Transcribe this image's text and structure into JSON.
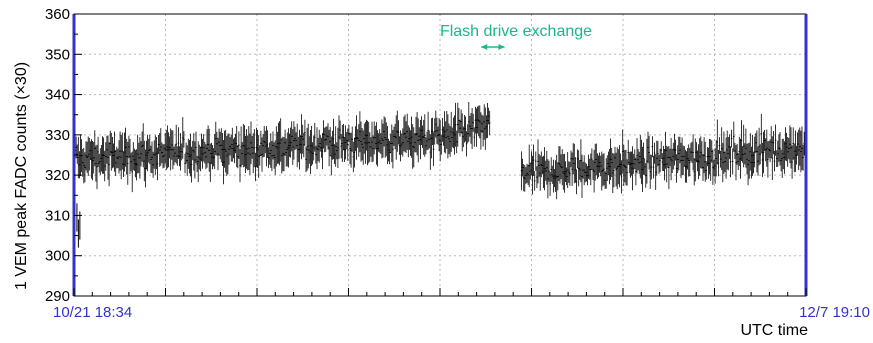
{
  "chart_data": {
    "type": "scatter",
    "title": "",
    "ylabel": "1 VEM peak FADC counts (×30)",
    "xlabel": "UTC time",
    "ylim": [
      290,
      360
    ],
    "yticks": [
      290,
      300,
      310,
      320,
      330,
      340,
      350,
      360
    ],
    "x_start_label": "10/21 18:34",
    "x_end_label": "12/7 19:10",
    "x_tick_labels_color": "#3333cc",
    "grid": "dotted",
    "annotation": {
      "text": "Flash drive exchange",
      "color": "#19b889",
      "x_range_fraction": [
        0.57,
        0.61
      ]
    },
    "series": [
      {
        "marker_color": "#000000",
        "errorbars": true,
        "segments": [
          {
            "x_range_fraction": [
              0.0,
              0.57
            ],
            "mean_start": 324,
            "mean_end": 330,
            "noise_sd": 3.5,
            "errorbar_halfwidth": 4,
            "min_value": 305,
            "max_value": 345
          },
          {
            "x_range_fraction": [
              0.61,
              1.0
            ],
            "mean_start": 320,
            "mean_end": 327,
            "noise_sd": 3.5,
            "errorbar_halfwidth": 4,
            "min_value": 312,
            "max_value": 339
          }
        ]
      }
    ]
  }
}
